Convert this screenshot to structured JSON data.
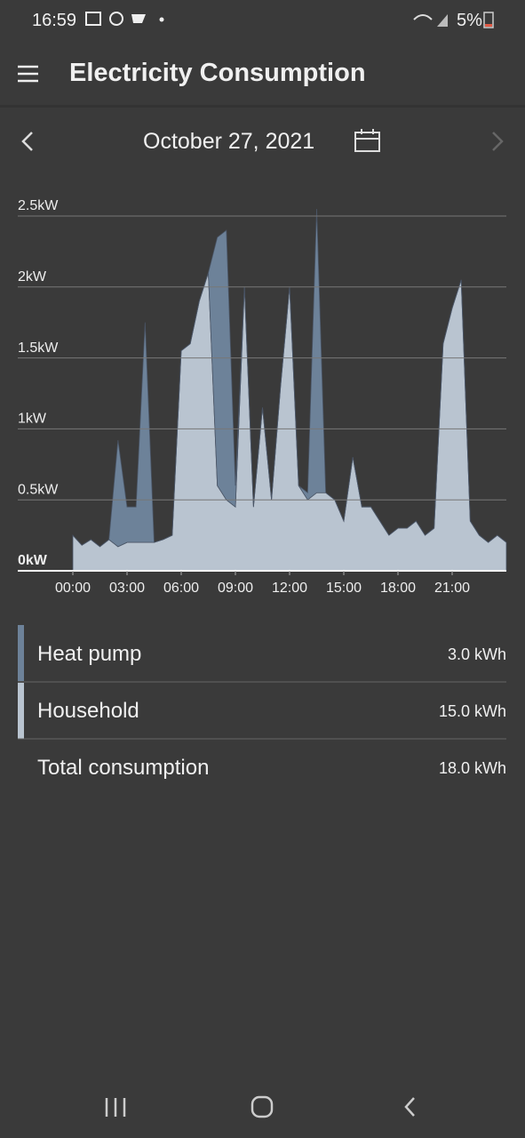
{
  "status_bar": {
    "time": "16:59",
    "battery": "5%"
  },
  "header": {
    "title": "Electricity Consumption"
  },
  "date_nav": {
    "date": "October 27, 2021"
  },
  "chart_data": {
    "type": "stacked-area",
    "x": [
      0,
      0.5,
      1,
      1.5,
      2,
      2.5,
      3,
      3.5,
      4,
      4.5,
      5,
      5.5,
      6,
      6.5,
      7,
      7.5,
      8,
      8.5,
      9,
      9.5,
      10,
      10.5,
      11,
      11.5,
      12,
      12.5,
      13,
      13.5,
      14,
      14.5,
      15,
      15.5,
      16,
      16.5,
      17,
      17.5,
      18,
      18.5,
      19,
      19.5,
      20,
      20.5,
      21,
      21.5,
      22,
      22.5,
      23,
      23.5,
      24
    ],
    "series": [
      {
        "name": "Household",
        "color": "#b9c4d0",
        "values": [
          0.25,
          0.18,
          0.22,
          0.17,
          0.22,
          0.17,
          0.2,
          0.2,
          0.2,
          0.2,
          0.22,
          0.25,
          1.55,
          1.6,
          1.9,
          2.1,
          0.6,
          0.5,
          0.45,
          2.0,
          0.45,
          1.15,
          0.5,
          1.3,
          2.0,
          0.6,
          0.5,
          0.55,
          0.55,
          0.5,
          0.35,
          0.8,
          0.45,
          0.45,
          0.35,
          0.25,
          0.3,
          0.3,
          0.35,
          0.25,
          0.3,
          1.6,
          1.85,
          2.05,
          0.35,
          0.25,
          0.2,
          0.25,
          0.2
        ]
      },
      {
        "name": "Heat pump",
        "color": "#6d8299",
        "values": [
          0,
          0,
          0,
          0,
          0,
          0.75,
          0.25,
          0.25,
          1.55,
          0,
          0,
          0,
          0,
          0,
          0,
          0,
          1.75,
          1.9,
          0.15,
          0,
          0,
          0,
          0,
          0,
          0,
          0,
          0.05,
          2.0,
          0,
          0,
          0,
          0,
          0,
          0,
          0,
          0,
          0,
          0,
          0,
          0,
          0,
          0,
          0,
          0,
          0,
          0,
          0,
          0,
          0
        ]
      }
    ],
    "xlim": [
      0,
      24
    ],
    "xticks": [
      {
        "value": 0,
        "label": "00:00"
      },
      {
        "value": 3,
        "label": "03:00"
      },
      {
        "value": 6,
        "label": "06:00"
      },
      {
        "value": 9,
        "label": "09:00"
      },
      {
        "value": 12,
        "label": "12:00"
      },
      {
        "value": 15,
        "label": "15:00"
      },
      {
        "value": 18,
        "label": "18:00"
      },
      {
        "value": 21,
        "label": "21:00"
      }
    ],
    "ylim": [
      0,
      2.5
    ],
    "yticks": [
      {
        "value": 0,
        "label": "0kW"
      },
      {
        "value": 0.5,
        "label": "0.5kW"
      },
      {
        "value": 1,
        "label": "1kW"
      },
      {
        "value": 1.5,
        "label": "1.5kW"
      },
      {
        "value": 2,
        "label": "2kW"
      },
      {
        "value": 2.5,
        "label": "2.5kW"
      }
    ],
    "grid": true
  },
  "summary": {
    "heat_pump": "3.0 kWh",
    "household": "15.0 kWh",
    "total_label": "Total consumption",
    "total": "18.0 kWh"
  }
}
